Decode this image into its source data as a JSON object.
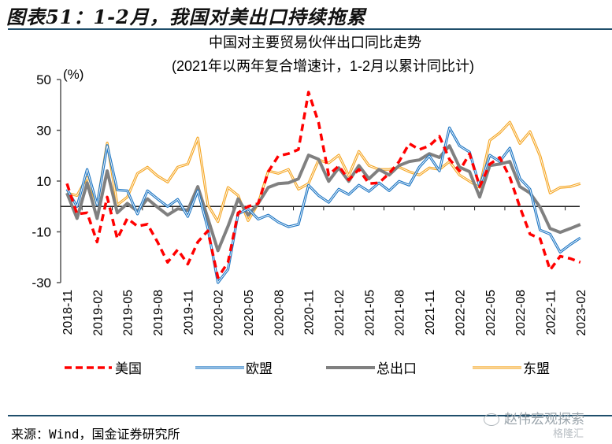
{
  "figure": {
    "title": "图表51：1-2月，我国对美出口持续拖累",
    "source": "来源：Wind，国金证券研究所",
    "watermark": "赵伟宏观探索",
    "watermark2": "格隆汇"
  },
  "chart_data": {
    "type": "line",
    "title": "中国对主要贸易伙伴出口同比走势",
    "subtitle": "(2021年以两年复合增速计，1-2月以累计同比计)",
    "ylabel": "(%)",
    "ylim": [
      -30,
      50
    ],
    "yticks": [
      50,
      30,
      10,
      -10,
      -30
    ],
    "grid": false,
    "legend_position": "bottom",
    "x": [
      "2018-11",
      "2018-12",
      "2019-01",
      "2019-02",
      "2019-03",
      "2019-04",
      "2019-05",
      "2019-06",
      "2019-07",
      "2019-08",
      "2019-09",
      "2019-10",
      "2019-11",
      "2019-12",
      "2020-01",
      "2020-02",
      "2020-03",
      "2020-04",
      "2020-05",
      "2020-06",
      "2020-07",
      "2020-08",
      "2020-09",
      "2020-10",
      "2020-11",
      "2020-12",
      "2021-01",
      "2021-02",
      "2021-03",
      "2021-04",
      "2021-05",
      "2021-06",
      "2021-07",
      "2021-08",
      "2021-09",
      "2021-10",
      "2021-11",
      "2021-12",
      "2022-01",
      "2022-02",
      "2022-03",
      "2022-04",
      "2022-05",
      "2022-06",
      "2022-07",
      "2022-08",
      "2022-09",
      "2022-10",
      "2022-11",
      "2022-12",
      "2023-01",
      "2023-02"
    ],
    "xtick_labels": [
      "2018-11",
      "2019-02",
      "2019-05",
      "2019-08",
      "2019-11",
      "2020-02",
      "2020-05",
      "2020-08",
      "2020-11",
      "2021-02",
      "2021-05",
      "2021-08",
      "2021-11",
      "2022-02",
      "2022-05",
      "2022-08",
      "2022-11",
      "2023-02"
    ],
    "series": [
      {
        "name": "美国",
        "color": "#ff0000",
        "style": "dashed",
        "values": [
          9,
          -3,
          -2.5,
          -14,
          3.7,
          -12.7,
          -4.7,
          -7.8,
          -7,
          -14,
          -22,
          -17,
          -22.7,
          -14,
          -9.6,
          -28,
          -22,
          -2.5,
          0,
          1.2,
          13.7,
          19.9,
          20.8,
          22.4,
          45,
          33,
          12.4,
          16,
          10.5,
          14.6,
          9,
          9.3,
          13,
          17.7,
          24.8,
          22.4,
          23.9,
          27.6,
          18.6,
          14,
          20.8,
          7.8,
          16.7,
          19.3,
          11.5,
          -0.3,
          -10.9,
          -12.7,
          -25,
          -19.6,
          -20.5,
          -22
        ]
      },
      {
        "name": "欧盟",
        "color": "#1f77c4",
        "style": "double",
        "values": [
          6.8,
          0,
          14.6,
          0.6,
          24,
          6.5,
          6.2,
          -3,
          6.2,
          3,
          0,
          2.8,
          -4,
          6.2,
          -8.7,
          -30,
          -24.8,
          -3,
          -0.9,
          -5,
          -3.4,
          -6.2,
          -8,
          -7.1,
          8.4,
          4.3,
          1.6,
          6.8,
          4.7,
          8.4,
          5.9,
          9.3,
          6.2,
          9.9,
          8.4,
          15.5,
          19.9,
          14,
          31,
          23.9,
          21.4,
          7.8,
          20.2,
          17.7,
          23,
          11,
          6.8,
          -9.3,
          -10.9,
          -18,
          -15,
          -12.4
        ]
      },
      {
        "name": "总出口",
        "color": "#808080",
        "style": "solid",
        "values": [
          5.3,
          -4.7,
          9.3,
          -4.7,
          14,
          -2.5,
          1.2,
          -1.9,
          3,
          -0.3,
          -3.4,
          -0.9,
          -1.5,
          7.8,
          -4.7,
          -17.4,
          -7.8,
          3,
          -3.4,
          1.2,
          7.5,
          9,
          9.3,
          10.9,
          20.2,
          18.6,
          9.9,
          15.2,
          9.9,
          16.1,
          10.9,
          14.6,
          12.4,
          16.1,
          17.7,
          18.3,
          20.8,
          19.3,
          23.9,
          15.5,
          13.7,
          3.7,
          16.1,
          16.7,
          17.7,
          7.8,
          5.3,
          -0.3,
          -8.7,
          -10.2,
          -8.7,
          -7.1
        ]
      },
      {
        "name": "东盟",
        "color": "#f5a623",
        "style": "double",
        "values": [
          5.3,
          4.3,
          11.5,
          0.6,
          25,
          0.6,
          3.7,
          13,
          15.5,
          12,
          9.6,
          15.5,
          16.7,
          27,
          0.6,
          -6,
          7.5,
          4.3,
          -5.6,
          1.2,
          14,
          13,
          14.6,
          6.8,
          9,
          18.3,
          17.1,
          20.2,
          12.1,
          21.7,
          16.1,
          14.6,
          14.6,
          15.5,
          13.7,
          12.4,
          15.2,
          14.6,
          17.7,
          12.4,
          9.9,
          7.5,
          26,
          29,
          33.2,
          24.8,
          29.5,
          19.9,
          5.3,
          7.5,
          7.8,
          9
        ]
      }
    ]
  }
}
